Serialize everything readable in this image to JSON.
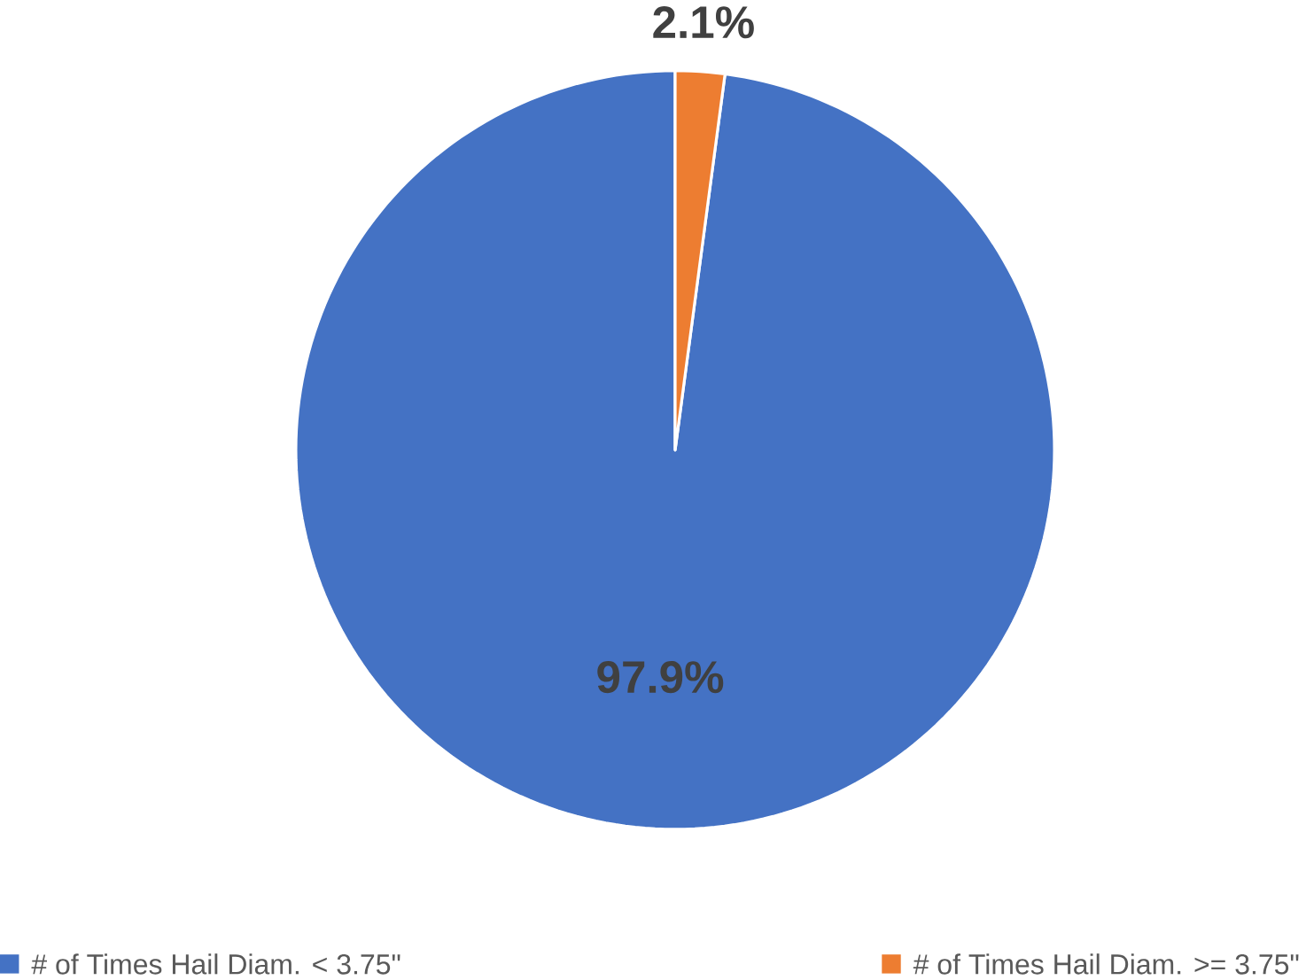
{
  "chart_data": {
    "type": "pie",
    "categories": [
      "# of Times Hail Diam. < 3.75\"",
      "# of Times Hail Diam. >= 3.75\""
    ],
    "values": [
      97.9,
      2.1
    ],
    "colors": [
      "#4472c4",
      "#ed7d31"
    ],
    "value_labels": [
      "97.9%",
      "2.1%"
    ],
    "legend": "bottom"
  }
}
